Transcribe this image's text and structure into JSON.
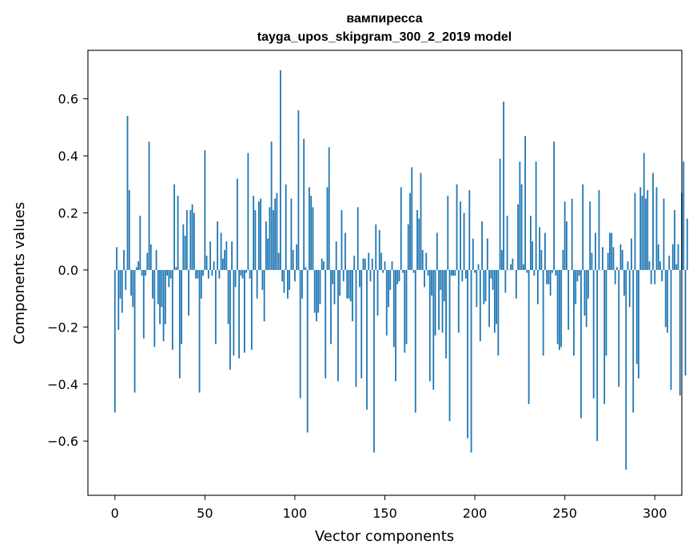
{
  "chart_data": {
    "type": "bar",
    "title_lines": [
      "вампиресса",
      "tayga_upos_skipgram_300_2_2019 model"
    ],
    "xlabel": "Vector components",
    "ylabel": "Components values",
    "xlim": [
      -15,
      315
    ],
    "ylim": [
      -0.79,
      0.77
    ],
    "x_ticks": [
      0,
      50,
      100,
      150,
      200,
      250,
      300
    ],
    "x_tick_labels": [
      "0",
      "50",
      "100",
      "150",
      "200",
      "250",
      "300"
    ],
    "y_ticks": [
      0.6,
      0.4,
      0.2,
      0.0,
      -0.2,
      -0.4,
      -0.6
    ],
    "y_tick_labels": [
      "0.6",
      "0.4",
      "0.2",
      "0.0",
      "−0.2",
      "−0.4",
      "−0.6"
    ],
    "grid": false,
    "bar_color": "#1f77b4",
    "values": [
      -0.5,
      0.08,
      -0.21,
      -0.1,
      -0.15,
      0.07,
      -0.07,
      0.54,
      0.28,
      -0.09,
      -0.13,
      -0.43,
      0.01,
      0.03,
      0.19,
      -0.02,
      -0.24,
      -0.02,
      0.06,
      0.45,
      0.09,
      -0.1,
      -0.27,
      0.07,
      -0.12,
      -0.19,
      -0.13,
      -0.25,
      -0.19,
      -0.02,
      -0.06,
      -0.03,
      -0.28,
      0.3,
      0.01,
      0.26,
      -0.38,
      -0.26,
      0.16,
      0.12,
      0.21,
      -0.16,
      0.21,
      0.23,
      0.2,
      -0.03,
      -0.03,
      -0.43,
      -0.1,
      -0.02,
      0.42,
      0.05,
      -0.03,
      0.1,
      -0.02,
      0.03,
      -0.26,
      0.17,
      -0.03,
      0.13,
      0.04,
      0.07,
      0.1,
      -0.19,
      -0.35,
      0.1,
      -0.3,
      -0.06,
      0.32,
      -0.31,
      -0.02,
      -0.03,
      -0.29,
      -0.01,
      0.41,
      -0.03,
      -0.28,
      0.26,
      0.21,
      -0.1,
      0.24,
      0.25,
      -0.07,
      -0.18,
      0.17,
      0.11,
      0.22,
      0.45,
      0.21,
      0.25,
      0.27,
      0.06,
      0.7,
      -0.04,
      -0.08,
      0.3,
      -0.1,
      -0.07,
      0.25,
      0.07,
      -0.04,
      0.09,
      0.56,
      -0.45,
      -0.1,
      0.46,
      0.01,
      -0.57,
      0.29,
      0.26,
      0.22,
      -0.15,
      -0.18,
      -0.15,
      -0.12,
      0.04,
      0.03,
      -0.38,
      0.29,
      0.43,
      -0.26,
      -0.05,
      -0.12,
      0.1,
      -0.39,
      -0.09,
      0.21,
      -0.04,
      0.13,
      -0.1,
      -0.1,
      -0.11,
      -0.18,
      0.05,
      -0.41,
      0.22,
      -0.06,
      -0.38,
      0.04,
      0.04,
      -0.49,
      0.06,
      -0.04,
      0.04,
      -0.64,
      0.16,
      -0.16,
      0.14,
      0.06,
      -0.01,
      0.03,
      -0.23,
      -0.13,
      -0.07,
      0.03,
      -0.27,
      -0.39,
      -0.05,
      -0.04,
      0.29,
      -0.01,
      -0.29,
      -0.26,
      0.16,
      0.27,
      0.36,
      -0.01,
      -0.5,
      0.21,
      0.18,
      0.34,
      0.07,
      -0.06,
      0.06,
      -0.02,
      -0.39,
      -0.09,
      -0.42,
      -0.23,
      0.13,
      -0.21,
      -0.07,
      -0.22,
      -0.11,
      -0.31,
      0.26,
      -0.53,
      -0.02,
      -0.02,
      -0.02,
      0.3,
      -0.22,
      0.24,
      -0.04,
      0.2,
      -0.03,
      -0.59,
      0.28,
      -0.64,
      0.11,
      -0.01,
      -0.13,
      0.02,
      -0.25,
      0.17,
      -0.12,
      -0.11,
      0.11,
      -0.2,
      -0.03,
      -0.07,
      -0.22,
      -0.19,
      -0.3,
      0.39,
      0.07,
      0.59,
      -0.08,
      0.19,
      0.0,
      0.02,
      0.04,
      0.0,
      -0.1,
      0.23,
      0.38,
      0.3,
      0.02,
      0.47,
      -0.01,
      -0.47,
      0.19,
      0.1,
      -0.02,
      0.38,
      -0.12,
      0.15,
      0.07,
      -0.3,
      0.13,
      -0.05,
      -0.05,
      -0.09,
      -0.01,
      0.45,
      -0.02,
      -0.26,
      -0.28,
      -0.27,
      0.07,
      0.24,
      0.17,
      -0.21,
      0.0,
      0.25,
      -0.3,
      -0.12,
      -0.04,
      -0.02,
      -0.52,
      0.3,
      -0.16,
      -0.2,
      -0.1,
      0.24,
      0.06,
      -0.45,
      0.13,
      -0.6,
      0.28,
      0.0,
      0.08,
      -0.47,
      -0.3,
      0.06,
      0.13,
      0.13,
      0.08,
      -0.05,
      0.01,
      -0.41,
      0.09,
      0.07,
      -0.09,
      -0.7,
      0.03,
      -0.13,
      0.11,
      -0.5,
      0.27,
      -0.33,
      -0.38,
      0.29,
      0.26,
      0.41,
      0.25,
      0.28,
      0.03,
      -0.05,
      0.34,
      -0.05,
      0.29,
      0.09,
      0.03,
      -0.04,
      0.25,
      -0.2,
      -0.22,
      0.05,
      -0.42,
      0.09,
      0.21,
      0.02,
      0.09,
      -0.44,
      0.27,
      0.38,
      -0.37,
      0.18
    ]
  }
}
